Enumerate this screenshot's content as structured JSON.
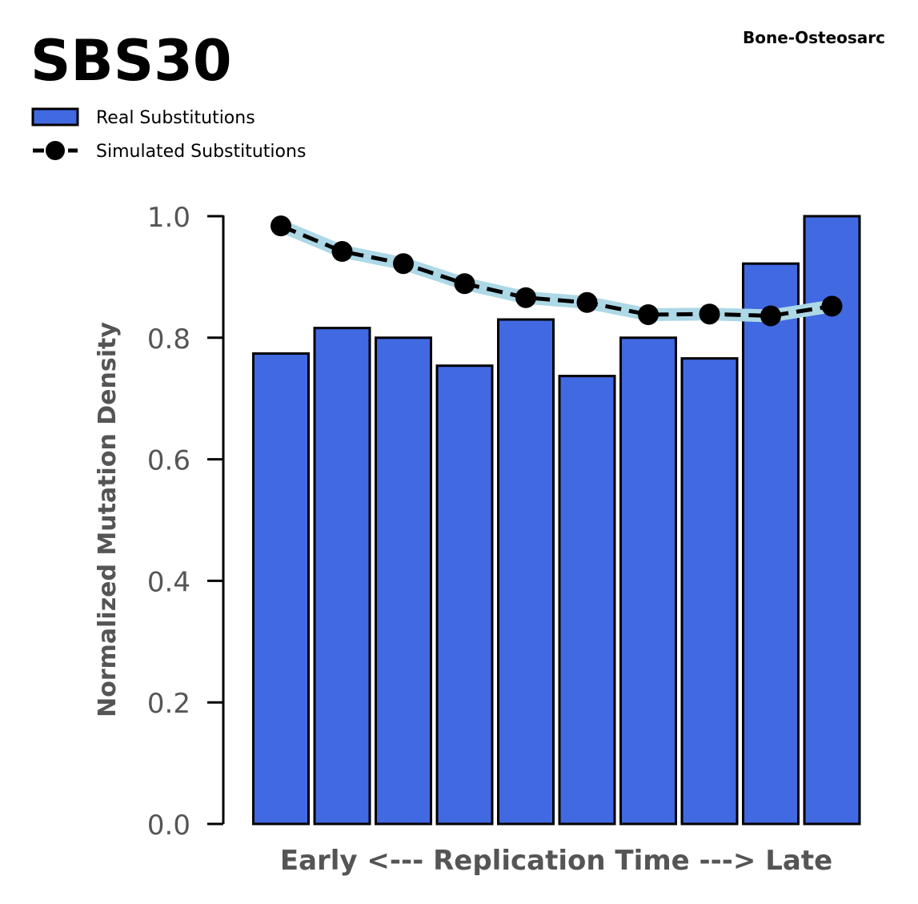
{
  "chart_data": {
    "type": "bar",
    "title": "SBS30",
    "subtitle": "Bone-Osteosarc",
    "xlabel": "Early <--- Replication Time ---> Late",
    "ylabel": "Normalized Mutation Density",
    "ylim": [
      0,
      1.0
    ],
    "yticks": [
      "0.0",
      "0.2",
      "0.4",
      "0.6",
      "0.8",
      "1.0"
    ],
    "legend_placement": "top-left",
    "grid": false,
    "categories": [
      1,
      2,
      3,
      4,
      5,
      6,
      7,
      8,
      9,
      10
    ],
    "series": [
      {
        "name": "Real Substitutions",
        "type": "bar",
        "color": "#4169e1",
        "values": [
          0.774,
          0.816,
          0.8,
          0.754,
          0.83,
          0.737,
          0.8,
          0.766,
          0.922,
          1.0
        ]
      },
      {
        "name": "Simulated Substitutions",
        "type": "line",
        "color": "#000000",
        "band_color": "#add8e6",
        "values": [
          0.984,
          0.942,
          0.922,
          0.889,
          0.866,
          0.858,
          0.838,
          0.839,
          0.836,
          0.852
        ]
      }
    ]
  }
}
